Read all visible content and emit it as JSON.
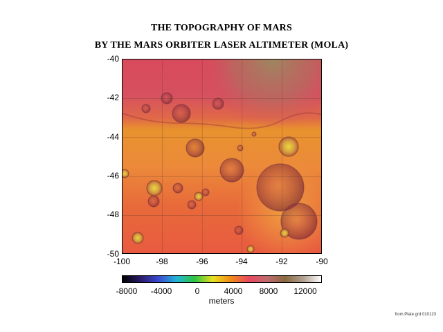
{
  "title_line1": "THE TOPOGRAPHY OF MARS",
  "title_line2": "BY THE MARS ORBITER LASER ALTIMETER (MOLA)",
  "map": {
    "longitude_ticks": [
      "-100",
      "-98",
      "-96",
      "-94",
      "-92",
      "-90"
    ],
    "latitude_ticks": [
      "-40",
      "-42",
      "-44",
      "-46",
      "-48",
      "-50"
    ],
    "grid": true
  },
  "colorbar": {
    "tick_labels": [
      "-8000",
      "-4000",
      "0",
      "4000",
      "8000",
      "12000"
    ],
    "unit_label": "meters",
    "colors": [
      "#000000",
      "#2a1a6a",
      "#3a4ad0",
      "#23b5d8",
      "#2cc440",
      "#e8e020",
      "#f08a18",
      "#e84860",
      "#c06a70",
      "#8a6a40",
      "#b0a090",
      "#ffffff"
    ]
  },
  "footnote": "from Plate grd 010123"
}
